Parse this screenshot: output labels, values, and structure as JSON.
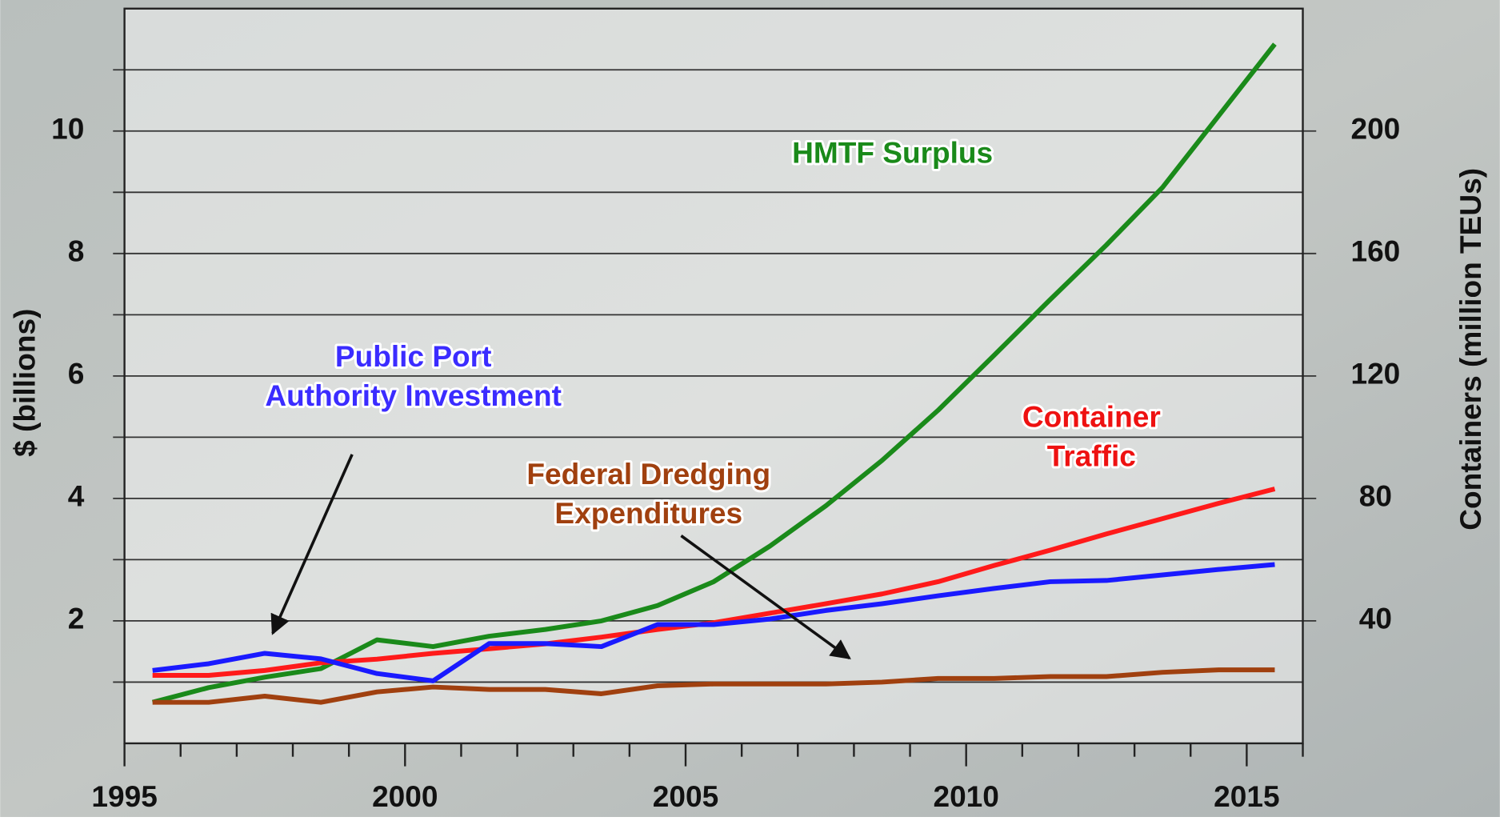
{
  "chart_data": {
    "type": "line",
    "y_label": "$ (billions)",
    "y2_label": "Containers (million TEUs)",
    "xlim": [
      1995,
      2016
    ],
    "xticks": [
      1995,
      2000,
      2005,
      2010,
      2015
    ],
    "xminorticks": [
      1996,
      1997,
      1998,
      1999,
      2001,
      2002,
      2003,
      2004,
      2006,
      2007,
      2008,
      2009,
      2011,
      2012,
      2013,
      2014,
      2016
    ],
    "ylim": [
      0,
      12
    ],
    "yticks": [
      2,
      4,
      6,
      8,
      10
    ],
    "yminorticks": [
      1,
      3,
      5,
      7,
      9,
      11
    ],
    "y2lim": [
      0,
      240
    ],
    "y2ticks": [
      40,
      80,
      120,
      160,
      200
    ],
    "grid": true,
    "x": [
      1995.5,
      1996.5,
      1997.5,
      1998.5,
      1999.5,
      2000.5,
      2001.5,
      2002.5,
      2003.5,
      2004.5,
      2005.5,
      2006.5,
      2007.5,
      2008.5,
      2009.5,
      2010.5,
      2011.5,
      2012.5,
      2013.5,
      2014.5,
      2015.5
    ],
    "series": [
      {
        "color": "#1a8a1a",
        "values": [
          0.67,
          0.91,
          1.08,
          1.22,
          1.69,
          1.58,
          1.75,
          1.86,
          2.0,
          2.25,
          2.64,
          3.22,
          3.88,
          4.62,
          5.44,
          6.34,
          7.25,
          8.14,
          9.08,
          10.25,
          11.42
        ]
      },
      {
        "color": "#ff1a1a",
        "axis": "y2",
        "values": [
          22.2,
          22.2,
          23.8,
          26.3,
          27.5,
          29.4,
          30.9,
          32.5,
          34.7,
          37.2,
          39.4,
          42.5,
          45.6,
          48.8,
          52.8,
          58.1,
          63.1,
          68.4,
          73.4,
          78.4,
          83.1
        ]
      },
      {
        "color": "#1a1aff",
        "values": [
          1.19,
          1.3,
          1.47,
          1.38,
          1.14,
          1.02,
          1.63,
          1.63,
          1.58,
          1.94,
          1.94,
          2.03,
          2.17,
          2.28,
          2.41,
          2.53,
          2.64,
          2.66,
          2.75,
          2.84,
          2.92
        ]
      },
      {
        "color": "#a0400f",
        "values": [
          0.67,
          0.67,
          0.77,
          0.67,
          0.84,
          0.92,
          0.88,
          0.88,
          0.81,
          0.94,
          0.97,
          0.97,
          0.97,
          1.0,
          1.06,
          1.06,
          1.09,
          1.09,
          1.16,
          1.2,
          1.2
        ]
      }
    ],
    "annotations": [
      {
        "lines": [
          "HMTF Surplus"
        ],
        "color": "#1a8a1a"
      },
      {
        "lines": [
          "Public Port",
          "Authority Investment"
        ],
        "color": "#3b2cff"
      },
      {
        "lines": [
          "Container",
          "Traffic"
        ],
        "color": "#ee1111"
      },
      {
        "lines": [
          "Federal Dredging",
          "Expenditures"
        ],
        "color": "#a0400f"
      }
    ]
  }
}
